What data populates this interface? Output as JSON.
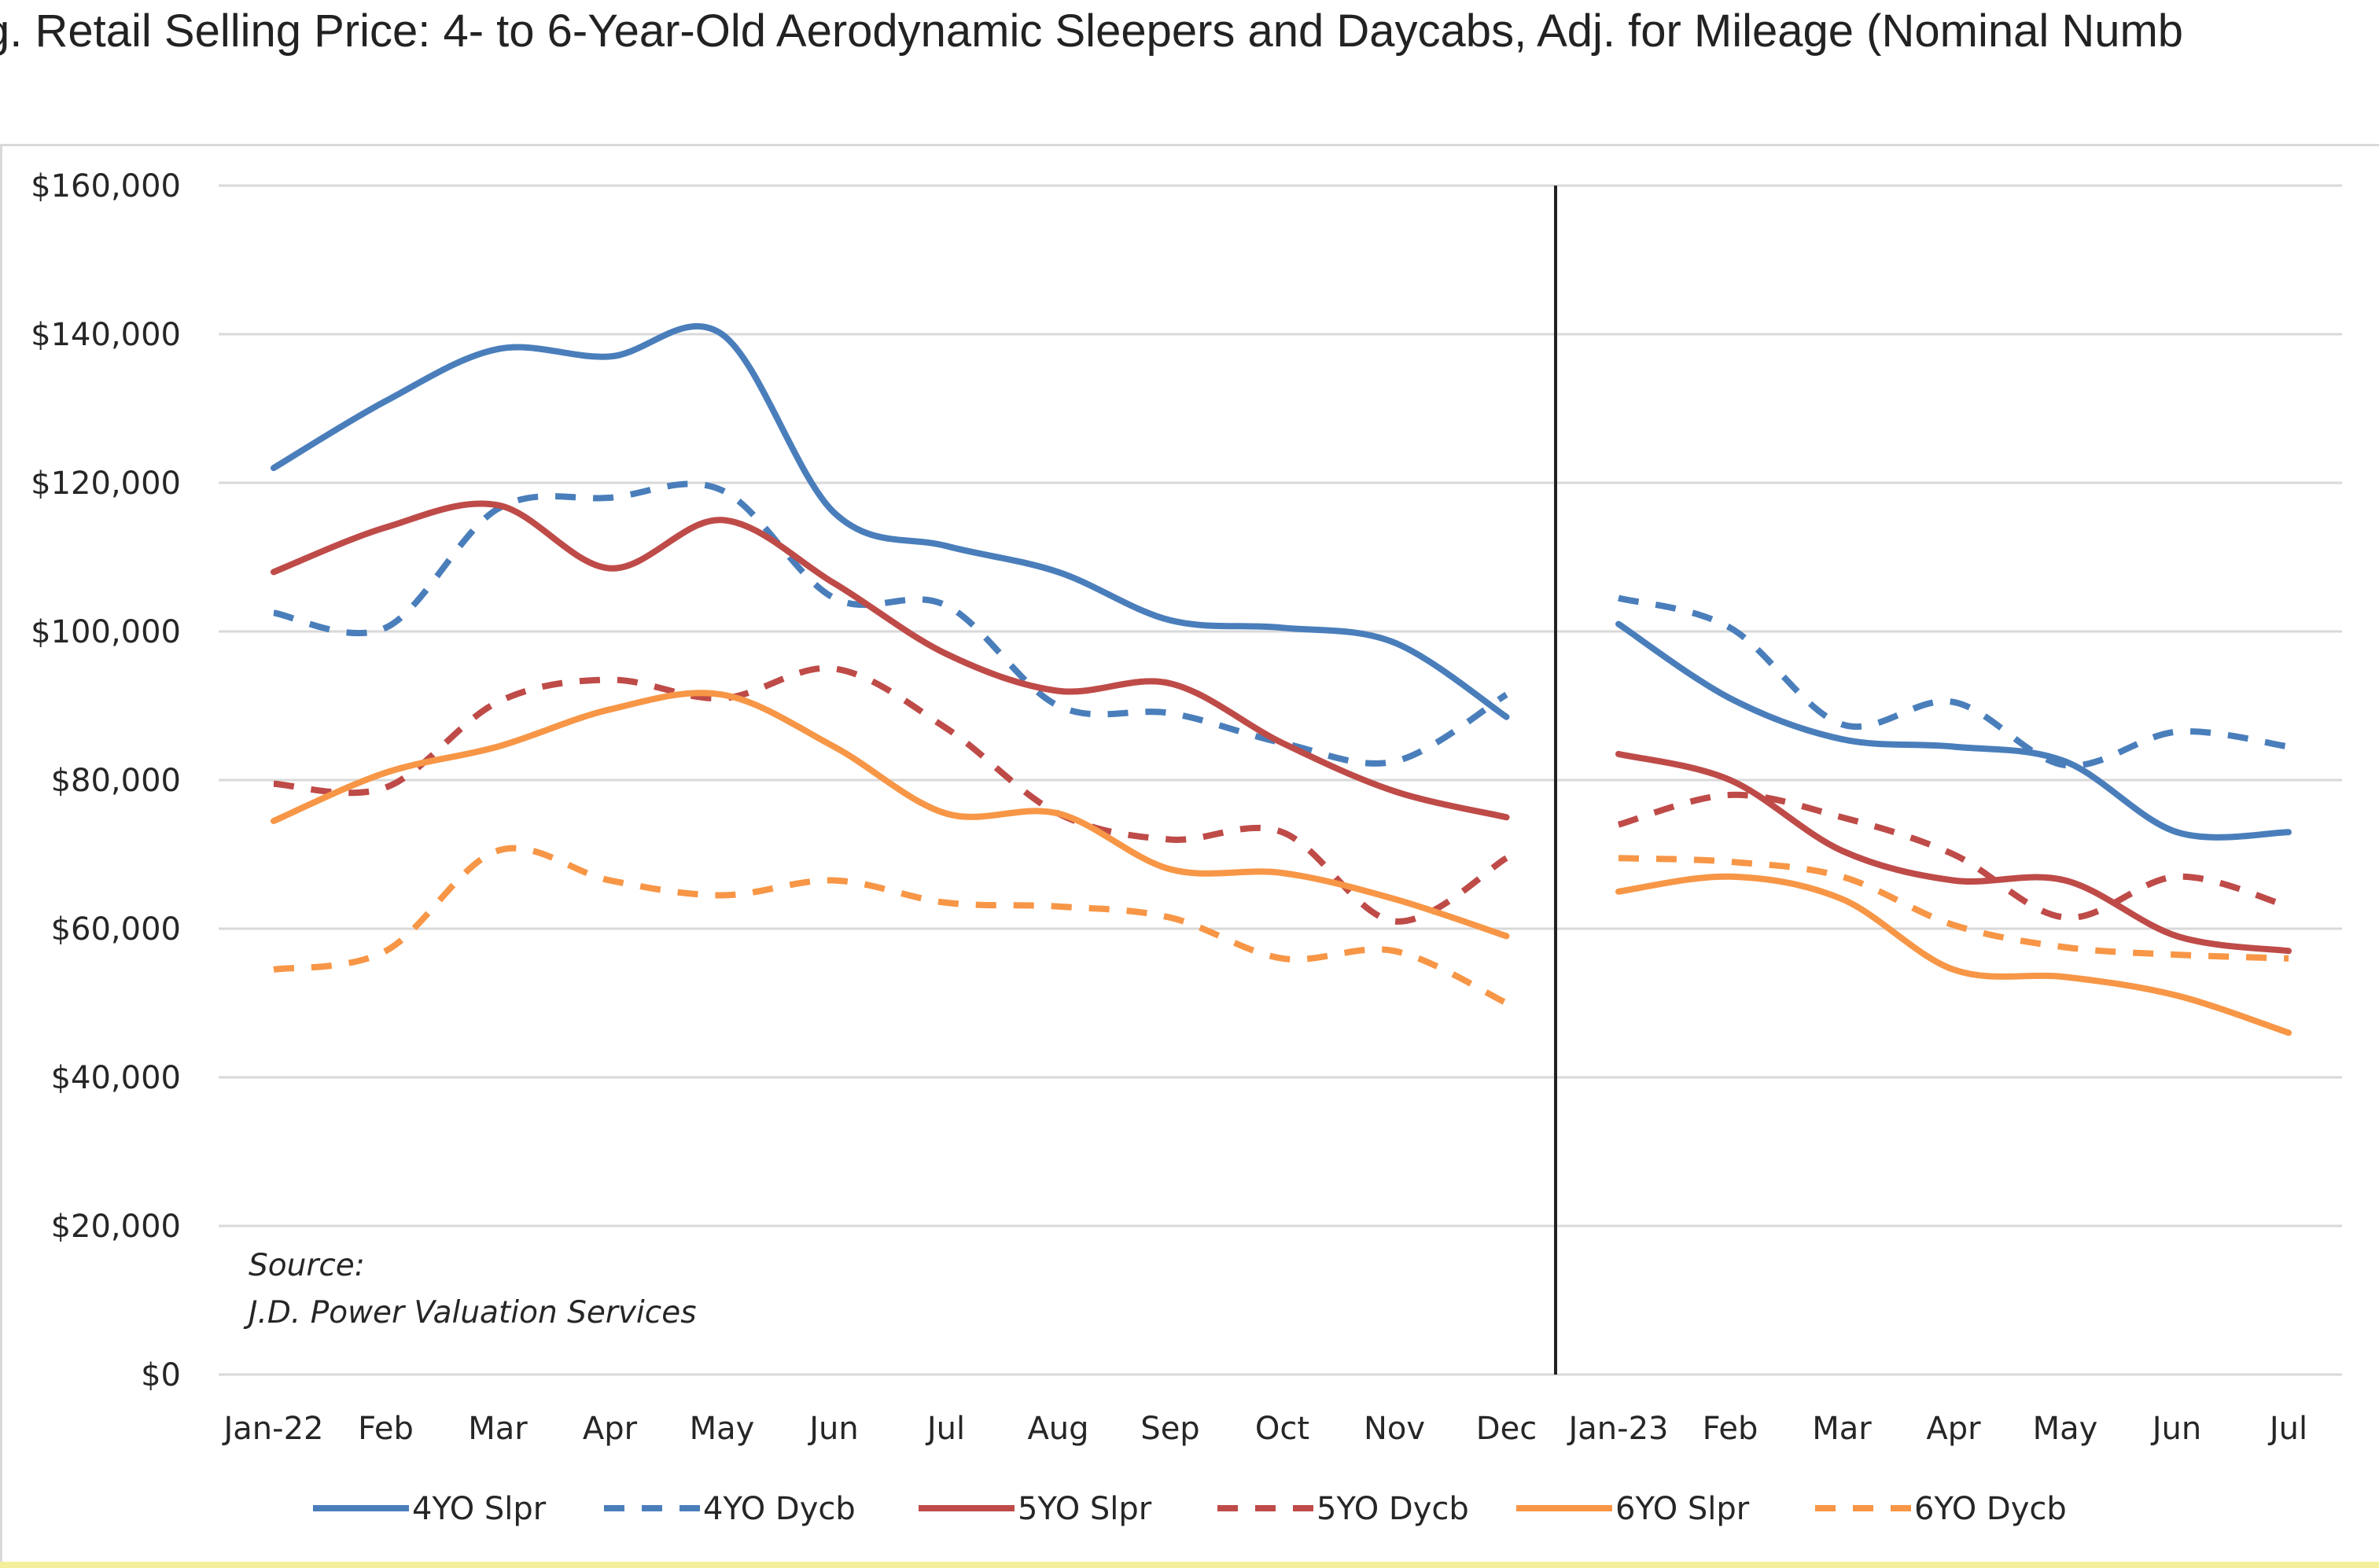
{
  "chart_data": {
    "type": "line",
    "title": "g. Retail Selling Price: 4- to 6-Year-Old Aerodynamic Sleepers and Daycabs, Adj. for Mileage (Nominal Numb",
    "xlabel": "",
    "ylabel": "",
    "ylim": [
      0,
      160000
    ],
    "y_ticks": [
      {
        "value": 0,
        "label": "$0"
      },
      {
        "value": 20000,
        "label": "$20,000"
      },
      {
        "value": 40000,
        "label": "$40,000"
      },
      {
        "value": 60000,
        "label": "$60,000"
      },
      {
        "value": 80000,
        "label": "$80,000"
      },
      {
        "value": 100000,
        "label": "$100,000"
      },
      {
        "value": 120000,
        "label": "$120,000"
      },
      {
        "value": 140000,
        "label": "$140,000"
      },
      {
        "value": 160000,
        "label": "$160,000"
      }
    ],
    "grid": true,
    "legend_position": "bottom",
    "divider_after": "Dec",
    "source": [
      "Source:",
      "J.D. Power Valuation Services"
    ],
    "segments": [
      {
        "categories": [
          "Jan-22",
          "Feb",
          "Mar",
          "Apr",
          "May",
          "Jun",
          "Jul",
          "Aug",
          "Sep",
          "Oct",
          "Nov",
          "Dec"
        ]
      },
      {
        "categories": [
          "Jan-23",
          "Feb",
          "Mar",
          "Apr",
          "May",
          "Jun",
          "Jul"
        ]
      }
    ],
    "series": [
      {
        "name": "4YO Slpr",
        "color": "#4a7ebb",
        "dashed": false,
        "segments": [
          [
            122000,
            131000,
            138000,
            137000,
            140000,
            116000,
            111500,
            108000,
            101500,
            100500,
            98500,
            88500
          ],
          [
            101000,
            91000,
            85500,
            84500,
            82500,
            73000,
            73000
          ]
        ]
      },
      {
        "name": "4YO Dycb",
        "color": "#4a7ebb",
        "dashed": true,
        "segments": [
          [
            102500,
            100500,
            116500,
            118000,
            119000,
            104500,
            103500,
            90000,
            89000,
            85000,
            82500,
            91500
          ],
          [
            104500,
            100500,
            87500,
            90500,
            82000,
            86500,
            84500
          ]
        ]
      },
      {
        "name": "5YO Slpr",
        "color": "#be4b48",
        "dashed": false,
        "segments": [
          [
            108000,
            114000,
            117000,
            108500,
            115000,
            106500,
            97000,
            92000,
            93000,
            85000,
            78500,
            75000
          ],
          [
            83500,
            80000,
            70500,
            66500,
            66500,
            59000,
            57000
          ]
        ]
      },
      {
        "name": "5YO Dycb",
        "color": "#be4b48",
        "dashed": true,
        "segments": [
          [
            79500,
            79000,
            90500,
            93500,
            91000,
            95000,
            87000,
            75500,
            72000,
            73000,
            61000,
            69500
          ],
          [
            74000,
            78000,
            75000,
            70000,
            61500,
            67000,
            63000
          ]
        ]
      },
      {
        "name": "6YO Slpr",
        "color": "#f79646",
        "dashed": false,
        "segments": [
          [
            74500,
            81000,
            84500,
            89500,
            91500,
            84500,
            75500,
            75500,
            68000,
            67500,
            64000,
            59000
          ],
          [
            65000,
            67000,
            64000,
            54500,
            53500,
            51000,
            46000
          ]
        ]
      },
      {
        "name": "6YO Dycb",
        "color": "#f79646",
        "dashed": true,
        "segments": [
          [
            54500,
            57000,
            70500,
            66500,
            64500,
            66500,
            63500,
            63000,
            61500,
            56000,
            57000,
            50000
          ],
          [
            69500,
            69000,
            67000,
            60500,
            57500,
            56500,
            56000
          ]
        ]
      }
    ]
  }
}
